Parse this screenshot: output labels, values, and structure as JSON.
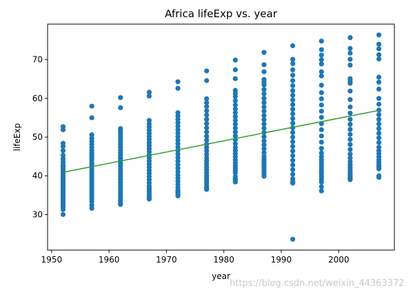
{
  "chart_data": {
    "type": "scatter",
    "title": "Africa lifeExp vs. year",
    "xlabel": "year",
    "ylabel": "lifeExp",
    "xlim": [
      1949.3,
      2009.7
    ],
    "ylim": [
      20.8,
      79.2
    ],
    "xticks": [
      1950,
      1960,
      1970,
      1980,
      1990,
      2000
    ],
    "yticks": [
      30,
      40,
      50,
      60,
      70
    ],
    "grid": false,
    "colors": {
      "points": "#1f77b4",
      "fit_line": "#2ca02c"
    },
    "series": [
      {
        "kind": "points",
        "x": [
          1952,
          1952,
          1952,
          1952,
          1952,
          1952,
          1952,
          1952,
          1952,
          1952,
          1952,
          1952,
          1952,
          1952,
          1952,
          1952,
          1952,
          1952,
          1952,
          1952,
          1952,
          1952,
          1952,
          1952,
          1952,
          1952,
          1952,
          1952,
          1952,
          1952,
          1952,
          1952,
          1957,
          1957,
          1957,
          1957,
          1957,
          1957,
          1957,
          1957,
          1957,
          1957,
          1957,
          1957,
          1957,
          1957,
          1957,
          1957,
          1957,
          1957,
          1957,
          1957,
          1957,
          1957,
          1957,
          1957,
          1957,
          1957,
          1957,
          1957,
          1957,
          1957,
          1957,
          1957,
          1962,
          1962,
          1962,
          1962,
          1962,
          1962,
          1962,
          1962,
          1962,
          1962,
          1962,
          1962,
          1962,
          1962,
          1962,
          1962,
          1962,
          1962,
          1962,
          1962,
          1962,
          1962,
          1962,
          1962,
          1962,
          1962,
          1962,
          1962,
          1962,
          1962,
          1962,
          1962,
          1967,
          1967,
          1967,
          1967,
          1967,
          1967,
          1967,
          1967,
          1967,
          1967,
          1967,
          1967,
          1967,
          1967,
          1967,
          1967,
          1967,
          1967,
          1967,
          1967,
          1967,
          1967,
          1967,
          1967,
          1967,
          1967,
          1967,
          1967,
          1967,
          1967,
          1967,
          1967,
          1972,
          1972,
          1972,
          1972,
          1972,
          1972,
          1972,
          1972,
          1972,
          1972,
          1972,
          1972,
          1972,
          1972,
          1972,
          1972,
          1972,
          1972,
          1972,
          1972,
          1972,
          1972,
          1972,
          1972,
          1972,
          1972,
          1972,
          1972,
          1972,
          1972,
          1972,
          1972,
          1977,
          1977,
          1977,
          1977,
          1977,
          1977,
          1977,
          1977,
          1977,
          1977,
          1977,
          1977,
          1977,
          1977,
          1977,
          1977,
          1977,
          1977,
          1977,
          1977,
          1977,
          1977,
          1977,
          1977,
          1977,
          1977,
          1977,
          1977,
          1977,
          1977,
          1977,
          1977,
          1982,
          1982,
          1982,
          1982,
          1982,
          1982,
          1982,
          1982,
          1982,
          1982,
          1982,
          1982,
          1982,
          1982,
          1982,
          1982,
          1982,
          1982,
          1982,
          1982,
          1982,
          1982,
          1982,
          1982,
          1982,
          1982,
          1982,
          1982,
          1982,
          1982,
          1982,
          1982,
          1987,
          1987,
          1987,
          1987,
          1987,
          1987,
          1987,
          1987,
          1987,
          1987,
          1987,
          1987,
          1987,
          1987,
          1987,
          1987,
          1987,
          1987,
          1987,
          1987,
          1987,
          1987,
          1987,
          1987,
          1987,
          1987,
          1987,
          1987,
          1987,
          1987,
          1987,
          1987,
          1992,
          1992,
          1992,
          1992,
          1992,
          1992,
          1992,
          1992,
          1992,
          1992,
          1992,
          1992,
          1992,
          1992,
          1992,
          1992,
          1992,
          1992,
          1992,
          1992,
          1992,
          1992,
          1992,
          1992,
          1992,
          1992,
          1992,
          1992,
          1992,
          1992,
          1992,
          1992,
          1997,
          1997,
          1997,
          1997,
          1997,
          1997,
          1997,
          1997,
          1997,
          1997,
          1997,
          1997,
          1997,
          1997,
          1997,
          1997,
          1997,
          1997,
          1997,
          1997,
          1997,
          1997,
          1997,
          1997,
          1997,
          1997,
          1997,
          1997,
          1997,
          1997,
          1997,
          1997,
          2002,
          2002,
          2002,
          2002,
          2002,
          2002,
          2002,
          2002,
          2002,
          2002,
          2002,
          2002,
          2002,
          2002,
          2002,
          2002,
          2002,
          2002,
          2002,
          2002,
          2002,
          2002,
          2002,
          2002,
          2002,
          2002,
          2002,
          2002,
          2002,
          2002,
          2002,
          2002,
          2007,
          2007,
          2007,
          2007,
          2007,
          2007,
          2007,
          2007,
          2007,
          2007,
          2007,
          2007,
          2007,
          2007,
          2007,
          2007,
          2007,
          2007,
          2007,
          2007,
          2007,
          2007,
          2007,
          2007,
          2007,
          2007,
          2007,
          2007,
          2007,
          2007,
          2007,
          2007
        ],
        "y": [
          52.7,
          51.9,
          48.4,
          47.6,
          46.5,
          45.3,
          44.4,
          43.6,
          42.9,
          42.3,
          41.7,
          41.1,
          40.6,
          40.0,
          39.5,
          39.0,
          38.5,
          38.0,
          37.5,
          37.0,
          36.5,
          36.0,
          35.5,
          35.0,
          34.5,
          34.0,
          33.5,
          33.0,
          32.5,
          31.9,
          31.3,
          30.0,
          58.0,
          55.0,
          50.6,
          49.7,
          48.9,
          48.1,
          47.3,
          46.6,
          46.0,
          45.4,
          44.8,
          44.2,
          43.6,
          43.0,
          42.4,
          41.8,
          41.2,
          40.6,
          40.0,
          39.4,
          38.8,
          38.2,
          37.6,
          37.0,
          36.4,
          35.8,
          35.2,
          34.6,
          34.0,
          33.3,
          32.4,
          31.6,
          60.2,
          57.6,
          52.2,
          51.6,
          50.9,
          50.2,
          49.5,
          48.8,
          48.1,
          47.4,
          46.7,
          46.0,
          45.3,
          44.6,
          43.9,
          43.2,
          42.5,
          41.8,
          41.1,
          40.4,
          39.7,
          39.0,
          38.3,
          37.6,
          36.9,
          36.2,
          35.5,
          34.8,
          34.1,
          33.5,
          32.8,
          32.6,
          61.6,
          60.6,
          54.3,
          53.4,
          52.6,
          51.8,
          51.0,
          50.2,
          49.4,
          48.6,
          47.8,
          47.0,
          46.2,
          45.4,
          44.6,
          43.8,
          43.0,
          42.2,
          41.4,
          40.6,
          39.8,
          39.0,
          38.2,
          37.4,
          36.8,
          36.3,
          35.8,
          35.3,
          34.8,
          34.3,
          34.0,
          34.0,
          64.3,
          62.6,
          56.3,
          55.5,
          54.6,
          53.7,
          52.8,
          51.9,
          51.0,
          50.1,
          49.2,
          48.3,
          47.4,
          46.5,
          45.6,
          44.7,
          43.8,
          42.9,
          42.0,
          41.1,
          40.2,
          39.4,
          38.6,
          37.8,
          37.0,
          36.3,
          35.7,
          35.2,
          35.0,
          34.8,
          35.6,
          36.0,
          67.1,
          64.6,
          59.9,
          58.9,
          57.9,
          56.8,
          55.7,
          54.6,
          53.5,
          52.4,
          51.3,
          50.2,
          49.2,
          48.2,
          47.3,
          46.4,
          45.5,
          44.6,
          43.8,
          43.0,
          42.2,
          41.5,
          40.8,
          40.1,
          39.5,
          39.0,
          38.5,
          38.0,
          37.3,
          36.9,
          36.5,
          36.5,
          69.9,
          67.4,
          65.1,
          62.1,
          61.3,
          60.5,
          59.4,
          58.3,
          57.3,
          56.3,
          55.3,
          54.3,
          53.3,
          52.3,
          51.3,
          50.3,
          49.3,
          48.3,
          47.3,
          46.5,
          45.7,
          44.9,
          44.1,
          43.3,
          42.6,
          42.0,
          41.4,
          40.8,
          39.8,
          39.2,
          38.9,
          38.4,
          71.9,
          68.7,
          66.9,
          64.9,
          64.2,
          63.5,
          62.3,
          61.2,
          60.0,
          58.9,
          57.8,
          56.7,
          55.6,
          54.5,
          53.4,
          52.3,
          51.2,
          50.1,
          49.0,
          48.0,
          47.0,
          46.0,
          45.1,
          44.4,
          43.8,
          43.2,
          42.7,
          42.2,
          41.6,
          41.0,
          40.4,
          39.9,
          73.6,
          70.1,
          69.0,
          67.4,
          66.0,
          64.6,
          63.3,
          62.0,
          60.8,
          59.6,
          58.4,
          57.2,
          56.0,
          54.8,
          53.6,
          52.4,
          51.2,
          50.0,
          48.8,
          47.6,
          46.4,
          45.2,
          44.0,
          42.8,
          41.6,
          40.4,
          39.2,
          38.5,
          38.3,
          38.1,
          38.3,
          23.6,
          74.8,
          72.6,
          71.2,
          70.0,
          68.9,
          66.9,
          65.8,
          63.4,
          61.5,
          59.9,
          58.3,
          56.7,
          55.1,
          53.5,
          51.9,
          50.3,
          48.7,
          47.1,
          45.9,
          44.9,
          44.1,
          43.4,
          42.7,
          42.0,
          41.4,
          40.9,
          40.4,
          39.7,
          39.0,
          38.4,
          37.2,
          36.1,
          75.7,
          72.9,
          71.7,
          70.1,
          68.6,
          65.1,
          64.4,
          63.9,
          61.9,
          59.7,
          57.8,
          56.2,
          54.6,
          53.3,
          52.0,
          50.7,
          49.4,
          48.1,
          46.8,
          45.6,
          44.6,
          43.7,
          42.9,
          42.2,
          41.6,
          41.0,
          40.6,
          40.2,
          39.8,
          39.4,
          39.2,
          39.0,
          76.4,
          74.0,
          72.8,
          71.3,
          70.2,
          65.5,
          64.2,
          62.4,
          60.0,
          58.5,
          57.0,
          55.8,
          54.6,
          53.4,
          52.2,
          51.0,
          49.8,
          48.6,
          47.4,
          46.5,
          45.7,
          44.9,
          44.2,
          43.6,
          43.0,
          42.5,
          42.3,
          42.6,
          42.4,
          41.8,
          40.0,
          39.6
        ]
      },
      {
        "kind": "fit_line",
        "x": [
          1952,
          2007
        ],
        "y": [
          40.9,
          56.9
        ]
      }
    ]
  },
  "watermark": "https://blog.csdn.net/weixin_44363372"
}
